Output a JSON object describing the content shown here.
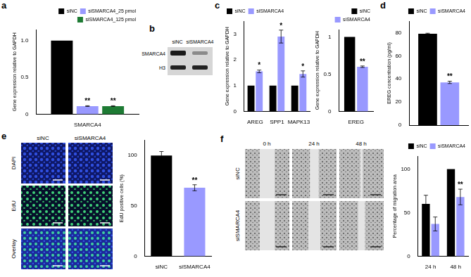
{
  "panel_labels": [
    "a",
    "b",
    "c",
    "d",
    "e",
    "f"
  ],
  "chart_data": [
    {
      "type": "bar",
      "y_label": "Gene expression relative to GAPDH",
      "categories": [
        "SMARCA4"
      ],
      "series": [
        {
          "name": "siNC",
          "color": "#000000",
          "values": [
            1.0
          ]
        },
        {
          "name": "siSMARCA4_25 pmol",
          "color": "#9999ff",
          "values": [
            0.11
          ],
          "errors": [
            0.005
          ]
        },
        {
          "name": "siSMARCA4_125 pmol",
          "color": "#1e7b34",
          "values": [
            0.11
          ],
          "errors": [
            0.005
          ]
        }
      ],
      "ylim": [
        0,
        1.15
      ],
      "yticks": [
        0,
        0.5,
        {
          "value": 1,
          "label": "1.0"
        }
      ],
      "grid": false,
      "legend": "upper right",
      "annotations": [
        {
          "series": 1,
          "category": 0,
          "text": "**"
        },
        {
          "series": 2,
          "category": 0,
          "text": "**"
        }
      ]
    },
    {
      "type": "bar",
      "y_label": "Gene expression relative to GAPDH",
      "categories": [
        "AREG",
        "SPP1",
        "MAPK13"
      ],
      "series": [
        {
          "name": "siNC",
          "color": "#000000",
          "values": [
            1,
            1,
            1
          ]
        },
        {
          "name": "siSMARCA4",
          "color": "#9999ff",
          "values": [
            1.55,
            2.9,
            1.45
          ],
          "errors": [
            0.05,
            0.25,
            0.12
          ]
        }
      ],
      "ylim": [
        0,
        3.5
      ],
      "yticks": [
        0,
        1,
        2,
        3
      ],
      "grid": false,
      "legend": "upper left",
      "annotations": [
        {
          "series": 1,
          "category": 0,
          "text": "*"
        },
        {
          "series": 1,
          "category": 1,
          "text": "*"
        },
        {
          "series": 1,
          "category": 2,
          "text": "*"
        }
      ]
    },
    {
      "type": "bar",
      "y_label": "Gene expression relative to GAPDH",
      "categories": [
        "EREG"
      ],
      "series": [
        {
          "name": "siNC",
          "color": "#000000",
          "values": [
            1
          ]
        },
        {
          "name": "siSMARCA4",
          "color": "#9999ff",
          "values": [
            0.6
          ],
          "errors": [
            0.01
          ]
        }
      ],
      "ylim": [
        0,
        1.1
      ],
      "yticks": [
        0,
        0.5,
        1
      ],
      "grid": false,
      "legend": "upper right",
      "annotations": [
        {
          "series": 1,
          "category": 0,
          "text": "**"
        }
      ]
    },
    {
      "type": "bar",
      "y_label": "EREG concentration (pg/ml)",
      "categories": [
        null
      ],
      "series": [
        {
          "name": "siNC",
          "color": "#000000",
          "values": [
            79
          ],
          "errors": [
            0.5
          ]
        },
        {
          "name": "siSMARCA4",
          "color": "#9999ff",
          "values": [
            37
          ],
          "errors": [
            1
          ]
        }
      ],
      "ylim": [
        0,
        90
      ],
      "yticks": [
        0,
        20,
        40,
        60,
        80
      ],
      "grid": false,
      "legend": "upper right",
      "tick_labels": "y",
      "annotations": [
        {
          "series": 1,
          "category": 0,
          "text": "**"
        }
      ]
    },
    {
      "type": "bar",
      "y_label": "EdU positive cells (%)",
      "categories": [
        "siNC",
        "siSMARCA4"
      ],
      "values": [
        100,
        68
      ],
      "errors": [
        4,
        3
      ],
      "colors": [
        "#000000",
        "#9999ff"
      ],
      "ylim": [
        0,
        115
      ],
      "yticks": [
        0,
        50,
        100
      ],
      "grid": false,
      "annotations": [
        {
          "series": 0,
          "category": 1,
          "text": "**"
        }
      ]
    },
    {
      "type": "bar",
      "y_label": "Percentage of migration area",
      "categories": [
        "24 h",
        "48 h"
      ],
      "series": [
        {
          "name": "siNC",
          "color": "#000000",
          "values": [
            60,
            100
          ],
          "errors": [
            10,
            0
          ]
        },
        {
          "name": "siSMARCA4",
          "color": "#9999ff",
          "values": [
            37,
            68
          ],
          "errors": [
            8,
            9
          ]
        }
      ],
      "ylim": [
        0,
        115
      ],
      "yticks": [
        0,
        50,
        100
      ],
      "grid": false,
      "legend": "upper right",
      "annotations": [
        {
          "series": 1,
          "category": 1,
          "text": "**"
        }
      ]
    }
  ],
  "blot": {
    "lanes": [
      "siNC",
      "siSMARCA4"
    ],
    "rows": [
      "SMARCA4",
      "H3"
    ]
  },
  "images_e": {
    "columns": [
      "siNC",
      "siSMARCA4"
    ],
    "rows": [
      "DAPI",
      "EdU",
      "Overlay"
    ]
  },
  "images_f": {
    "columns": [
      "0 h",
      "24 h",
      "48 h"
    ],
    "rows": [
      "siNC",
      "siSMARCA4"
    ]
  }
}
